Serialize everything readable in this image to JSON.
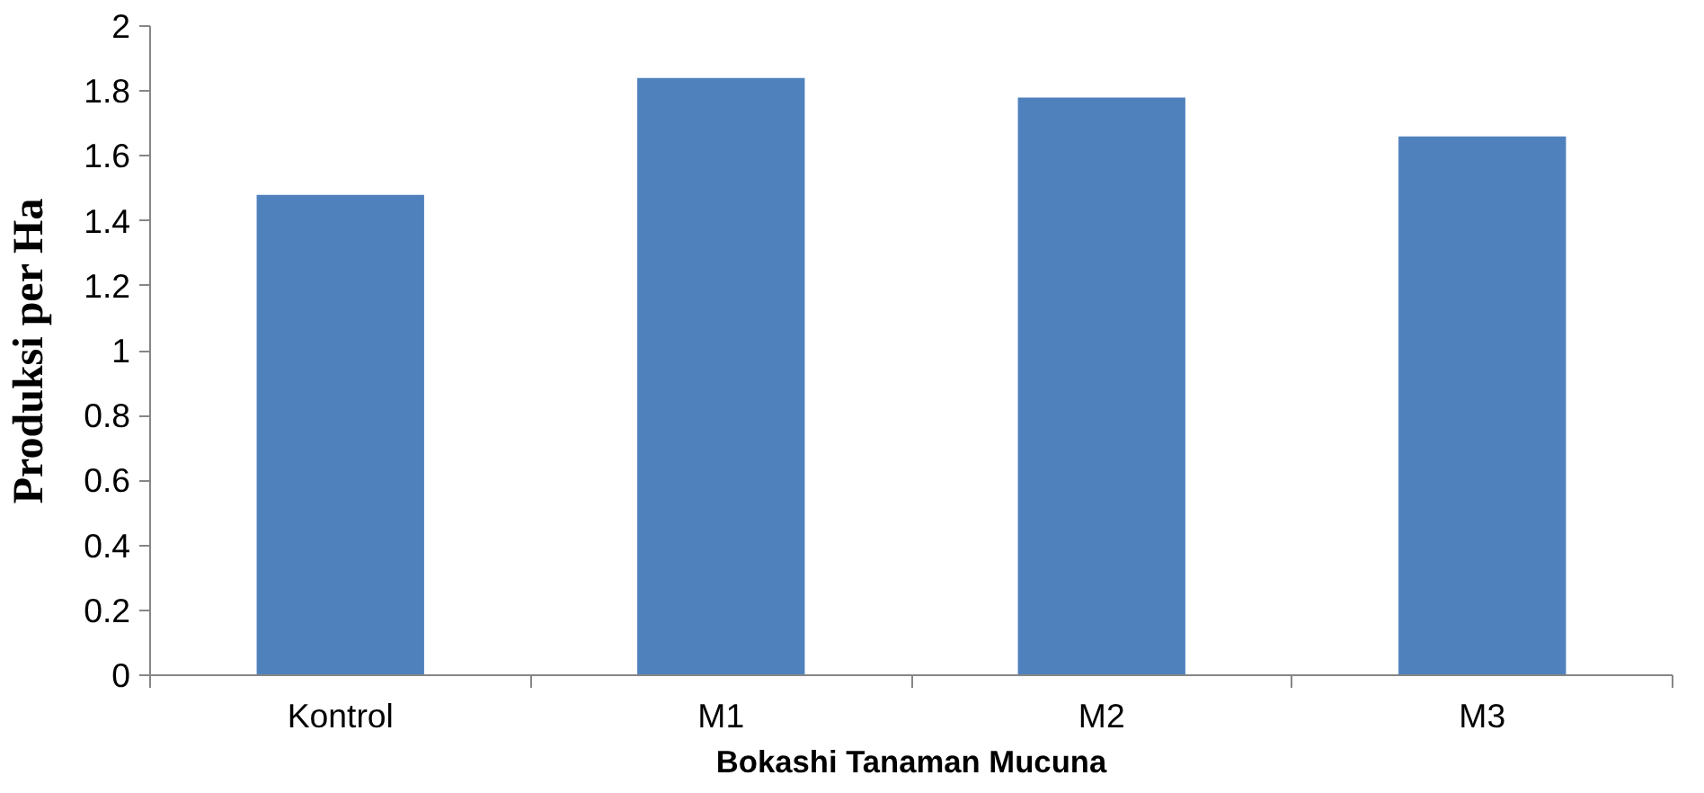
{
  "chart_data": {
    "type": "bar",
    "xlabel": "Bokashi Tanaman Mucuna",
    "ylabel": "Produksi per Ha",
    "categories": [
      "Kontrol",
      "M1",
      "M2",
      "M3"
    ],
    "values": [
      1.48,
      1.84,
      1.78,
      1.66
    ],
    "color": "#4f81bd",
    "ylim": [
      0,
      2
    ],
    "yticks": [
      0,
      0.2,
      0.4,
      0.6,
      0.8,
      1,
      1.2,
      1.4,
      1.6,
      1.8,
      2
    ],
    "grid": false
  }
}
